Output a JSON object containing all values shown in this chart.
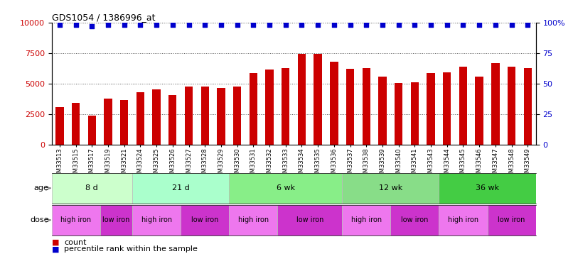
{
  "title": "GDS1054 / 1386996_at",
  "samples": [
    "GSM33513",
    "GSM33515",
    "GSM33517",
    "GSM33519",
    "GSM33521",
    "GSM33524",
    "GSM33525",
    "GSM33526",
    "GSM33527",
    "GSM33528",
    "GSM33529",
    "GSM33530",
    "GSM33531",
    "GSM33532",
    "GSM33533",
    "GSM33534",
    "GSM33535",
    "GSM33536",
    "GSM33537",
    "GSM33538",
    "GSM33539",
    "GSM33540",
    "GSM33541",
    "GSM33543",
    "GSM33544",
    "GSM33545",
    "GSM33546",
    "GSM33547",
    "GSM33548",
    "GSM33549"
  ],
  "counts": [
    3100,
    3450,
    2400,
    3800,
    3700,
    4300,
    4550,
    4100,
    4750,
    4750,
    4650,
    4750,
    5850,
    6150,
    6300,
    7450,
    7450,
    6800,
    6200,
    6300,
    5600,
    5050,
    5150,
    5850,
    5950,
    6400,
    5600,
    6700,
    6400,
    6300
  ],
  "percentile": [
    98,
    98,
    97,
    98,
    98,
    98,
    98,
    98,
    98,
    98,
    98,
    98,
    98,
    98,
    98,
    98,
    98,
    98,
    98,
    98,
    98,
    98,
    98,
    98,
    98,
    98,
    98,
    98,
    98,
    98
  ],
  "bar_color": "#cc0000",
  "dot_color": "#0000cc",
  "ylim_left": [
    0,
    10000
  ],
  "ylim_right": [
    0,
    100
  ],
  "yticks_left": [
    0,
    2500,
    5000,
    7500,
    10000
  ],
  "yticks_right": [
    0,
    25,
    50,
    75,
    100
  ],
  "ytick_labels_right": [
    "0",
    "25",
    "50",
    "75",
    "100%"
  ],
  "age_groups": [
    {
      "label": "8 d",
      "start": 0,
      "end": 5,
      "color": "#ccffcc"
    },
    {
      "label": "21 d",
      "start": 5,
      "end": 11,
      "color": "#aaffcc"
    },
    {
      "label": "6 wk",
      "start": 11,
      "end": 18,
      "color": "#88ee88"
    },
    {
      "label": "12 wk",
      "start": 18,
      "end": 24,
      "color": "#88dd88"
    },
    {
      "label": "36 wk",
      "start": 24,
      "end": 30,
      "color": "#44cc44"
    }
  ],
  "dose_groups": [
    {
      "label": "high iron",
      "start": 0,
      "end": 3,
      "color": "#ee77ee"
    },
    {
      "label": "low iron",
      "start": 3,
      "end": 5,
      "color": "#cc33cc"
    },
    {
      "label": "high iron",
      "start": 5,
      "end": 8,
      "color": "#ee77ee"
    },
    {
      "label": "low iron",
      "start": 8,
      "end": 11,
      "color": "#cc33cc"
    },
    {
      "label": "high iron",
      "start": 11,
      "end": 14,
      "color": "#ee77ee"
    },
    {
      "label": "low iron",
      "start": 14,
      "end": 18,
      "color": "#cc33cc"
    },
    {
      "label": "high iron",
      "start": 18,
      "end": 21,
      "color": "#ee77ee"
    },
    {
      "label": "low iron",
      "start": 21,
      "end": 24,
      "color": "#cc33cc"
    },
    {
      "label": "high iron",
      "start": 24,
      "end": 27,
      "color": "#ee77ee"
    },
    {
      "label": "low iron",
      "start": 27,
      "end": 30,
      "color": "#cc33cc"
    }
  ],
  "legend_count_color": "#cc0000",
  "legend_pct_color": "#0000cc",
  "bg_color": "#ffffff",
  "grid_color": "#555555",
  "age_label": "age",
  "dose_label": "dose"
}
